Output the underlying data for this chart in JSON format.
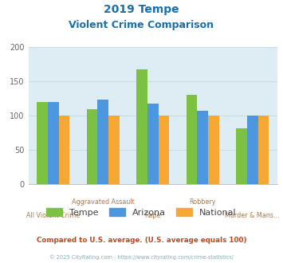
{
  "title_line1": "2019 Tempe",
  "title_line2": "Violent Crime Comparison",
  "categories_top": [
    "",
    "Aggravated Assault",
    "",
    "Robbery",
    ""
  ],
  "categories_bot": [
    "All Violent Crime",
    "",
    "Rape",
    "",
    "Murder & Mans..."
  ],
  "tempe": [
    120,
    110,
    168,
    130,
    82
  ],
  "arizona": [
    120,
    124,
    118,
    107,
    100
  ],
  "national": [
    100,
    100,
    100,
    100,
    100
  ],
  "color_tempe": "#7dc142",
  "color_arizona": "#4d96e0",
  "color_national": "#f5a833",
  "title_color": "#1a6fad",
  "xlabel_top_color": "#b07848",
  "xlabel_bot_color": "#b07848",
  "background_color": "#deedf4",
  "ylim": [
    0,
    200
  ],
  "yticks": [
    0,
    50,
    100,
    150,
    200
  ],
  "footer_note": "Compared to U.S. average. (U.S. average equals 100)",
  "footer_copy": "© 2025 CityRating.com - https://www.cityrating.com/crime-statistics/",
  "footer_note_color": "#c04818",
  "footer_copy_color": "#88aabb",
  "legend_label_color": "#444444",
  "grid_color": "#c8dde8",
  "bar_width": 0.22
}
